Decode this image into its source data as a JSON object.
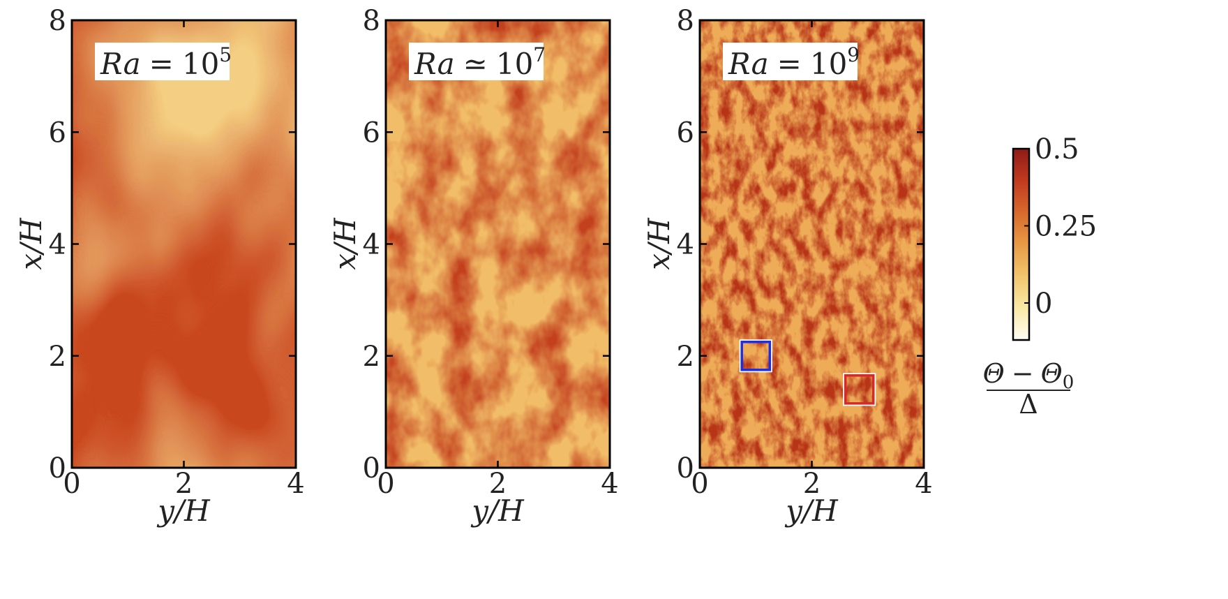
{
  "chart_data": [
    {
      "type": "heatmap",
      "panel_label": "Ra = 10^5",
      "label_parts": {
        "lhs": "Ra",
        "relation": "=",
        "base": "10",
        "exponent": "5"
      },
      "xlabel": "y/H",
      "ylabel": "x/H",
      "xlim": [
        0,
        4
      ],
      "ylim": [
        0,
        8
      ],
      "xticks": [
        "0",
        "2",
        "4"
      ],
      "yticks": [
        "0",
        "2",
        "4",
        "6",
        "8"
      ],
      "field": "temperature field, coarse large-scale plumes",
      "marked_regions": []
    },
    {
      "type": "heatmap",
      "panel_label": "Ra ≃ 10^7",
      "label_parts": {
        "lhs": "Ra",
        "relation": "≃",
        "base": "10",
        "exponent": "7"
      },
      "xlabel": "y/H",
      "ylabel": "x/H",
      "xlim": [
        0,
        4
      ],
      "ylim": [
        0,
        8
      ],
      "xticks": [
        "0",
        "2",
        "4"
      ],
      "yticks": [
        "0",
        "2",
        "4",
        "6",
        "8"
      ],
      "field": "temperature field, intermediate-scale turbulent structures",
      "marked_regions": []
    },
    {
      "type": "heatmap",
      "panel_label": "Ra = 10^9",
      "label_parts": {
        "lhs": "Ra",
        "relation": "=",
        "base": "10",
        "exponent": "9"
      },
      "xlabel": "y/H",
      "ylabel": "x/H",
      "xlim": [
        0,
        4
      ],
      "ylim": [
        0,
        8
      ],
      "xticks": [
        "0",
        "2",
        "4"
      ],
      "yticks": [
        "0",
        "2",
        "4",
        "6",
        "8"
      ],
      "field": "temperature field, fine-scale turbulent structures",
      "marked_regions": [
        {
          "color": "#1f2fe0",
          "y_range": [
            0.75,
            1.25
          ],
          "x_range": [
            1.75,
            2.25
          ]
        },
        {
          "color": "#d42a2a",
          "y_range": [
            2.6,
            3.1
          ],
          "x_range": [
            1.15,
            1.65
          ]
        }
      ]
    }
  ],
  "colorbar": {
    "ticks": [
      "0.5",
      "0.25",
      "0"
    ],
    "tick_values": [
      0.5,
      0.25,
      0
    ],
    "range": [
      -0.12,
      0.5
    ],
    "colors": [
      "#fffdf3",
      "#fbe8a6",
      "#f3c56e",
      "#e89a45",
      "#d8692e",
      "#c23a20",
      "#8e1b17"
    ],
    "label_numerator": "Θ − Θ0",
    "label_denominator": "Δ",
    "numerator_parts": {
      "a": "Θ",
      "op": "−",
      "b": "Θ",
      "sub": "0"
    }
  }
}
